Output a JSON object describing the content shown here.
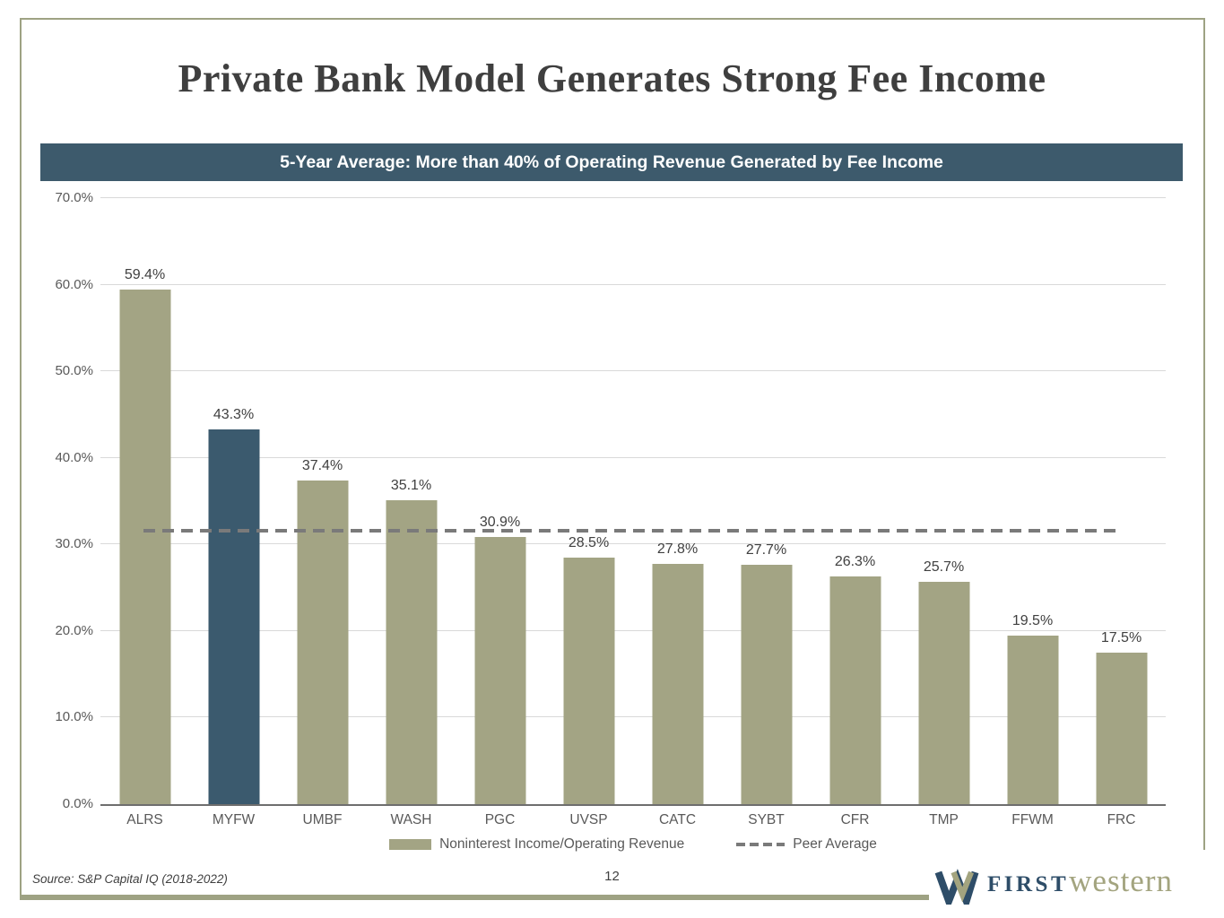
{
  "slide": {
    "title": "Private Bank Model Generates Strong Fee Income",
    "banner_text": "5-Year Average: More than 40% of Operating Revenue Generated by Fee Income",
    "source_note": "Source: S&P Capital IQ (2018-2022)",
    "page_number": "12",
    "logo": {
      "word_first": "FIRST",
      "word_western": "western"
    }
  },
  "colors": {
    "banner_bg": "#3d5a6c",
    "bar": "#a3a484",
    "bar_highlight": "#3b5a6e",
    "peer_line": "#7a7a7a",
    "frame_border": "#9ea283",
    "title_text": "#3f3f3f",
    "axis_text": "#595959",
    "logo_navy": "#2e4d68",
    "logo_olive": "#a3a47f"
  },
  "chart_data": {
    "type": "bar",
    "title": "5-Year Average: More than 40% of Operating Revenue Generated by Fee Income",
    "categories": [
      "ALRS",
      "MYFW",
      "UMBF",
      "WASH",
      "PGC",
      "UVSP",
      "CATC",
      "SYBT",
      "CFR",
      "TMP",
      "FFWM",
      "FRC"
    ],
    "series": [
      {
        "name": "Noninterest Income/Operating Revenue",
        "values": [
          59.4,
          43.3,
          37.4,
          35.1,
          30.9,
          28.5,
          27.8,
          27.7,
          26.3,
          25.7,
          19.5,
          17.5
        ]
      }
    ],
    "highlight_category": "MYFW",
    "peer_average": {
      "label": "Peer Average",
      "value": 31.6,
      "style": "dashed"
    },
    "ylim": [
      0,
      70
    ],
    "ytick_step": 10,
    "ytick_labels": [
      "0.0%",
      "10.0%",
      "20.0%",
      "30.0%",
      "40.0%",
      "50.0%",
      "60.0%",
      "70.0%"
    ],
    "value_labels": [
      "59.4%",
      "43.3%",
      "37.4%",
      "35.1%",
      "30.9%",
      "28.5%",
      "27.8%",
      "27.7%",
      "26.3%",
      "25.7%",
      "19.5%",
      "17.5%"
    ],
    "grid": "horizontal-light",
    "legend_position": "bottom"
  }
}
